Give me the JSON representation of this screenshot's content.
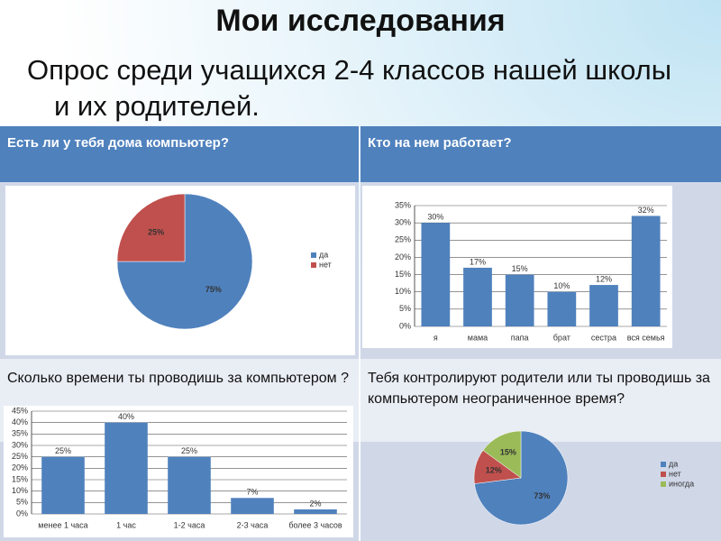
{
  "title": "Мои исследования",
  "subtitle": "Опрос среди учащихся 2-4 классов нашей школы и их родителей.",
  "table": {
    "headers": [
      "Есть ли у тебя дома компьютер?",
      "Кто на нем работает?"
    ],
    "rows": [
      [
        "Сколько времени ты проводишь за компьютером ?",
        "Тебя контролируют родители или ты проводишь за  компьютером неограниченное время?"
      ]
    ]
  },
  "chart_data": [
    {
      "type": "pie",
      "categories": [
        "да",
        "нет"
      ],
      "values": [
        75,
        25
      ],
      "value_labels": [
        "75%",
        "25%"
      ],
      "colors": [
        "#4f81bd",
        "#c0504d"
      ],
      "legend": "right"
    },
    {
      "type": "bar",
      "categories": [
        "я",
        "мама",
        "папа",
        "брат",
        "сестра",
        "вся семья"
      ],
      "values": [
        30,
        17,
        15,
        10,
        12,
        32
      ],
      "value_labels": [
        "30%",
        "17%",
        "15%",
        "10%",
        "12%",
        "32%"
      ],
      "color": "#4f81bd",
      "ylim": [
        0,
        35
      ],
      "yticks": [
        {
          "value": 0,
          "label": "0%"
        },
        {
          "value": 5,
          "label": "5%"
        },
        {
          "value": 10,
          "label": "10%"
        },
        {
          "value": 15,
          "label": "15%"
        },
        {
          "value": 20,
          "label": "20%"
        },
        {
          "value": 25,
          "label": "25%"
        },
        {
          "value": 30,
          "label": "30%"
        },
        {
          "value": 35,
          "label": "35%"
        }
      ],
      "grid": true
    },
    {
      "type": "bar",
      "categories": [
        "менее 1 часа",
        "1 час",
        "1-2 часа",
        "2-3 часа",
        "более 3 часов"
      ],
      "values": [
        25,
        40,
        25,
        7,
        2
      ],
      "value_labels": [
        "25%",
        "40%",
        "25%",
        "7%",
        "2%"
      ],
      "color": "#4f81bd",
      "ylim": [
        0,
        45
      ],
      "yticks": [
        {
          "value": 0,
          "label": "0%"
        },
        {
          "value": 5,
          "label": "5%"
        },
        {
          "value": 10,
          "label": "10%"
        },
        {
          "value": 15,
          "label": "15%"
        },
        {
          "value": 20,
          "label": "20%"
        },
        {
          "value": 25,
          "label": "25%"
        },
        {
          "value": 30,
          "label": "30%"
        },
        {
          "value": 35,
          "label": "35%"
        },
        {
          "value": 40,
          "label": "40%"
        },
        {
          "value": 45,
          "label": "45%"
        }
      ],
      "grid": true
    },
    {
      "type": "pie",
      "categories": [
        "да",
        "нет",
        "иногда"
      ],
      "values": [
        73,
        12,
        15
      ],
      "value_labels": [
        "73%",
        "12%",
        "15%"
      ],
      "colors": [
        "#4f81bd",
        "#c0504d",
        "#9bbb59"
      ],
      "legend": "right"
    }
  ]
}
